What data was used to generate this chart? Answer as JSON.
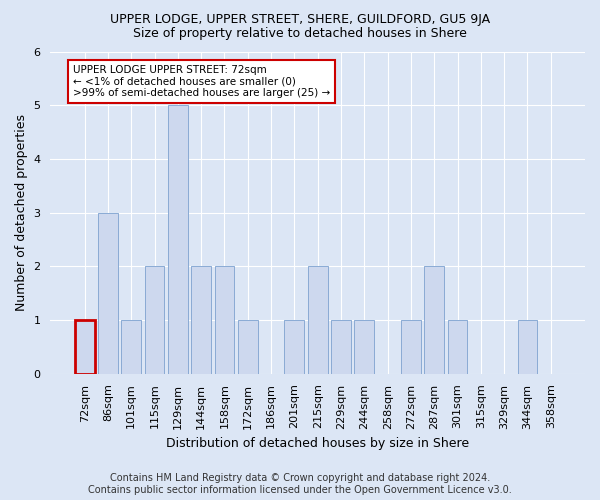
{
  "title": "UPPER LODGE, UPPER STREET, SHERE, GUILDFORD, GU5 9JA",
  "subtitle": "Size of property relative to detached houses in Shere",
  "xlabel": "Distribution of detached houses by size in Shere",
  "ylabel": "Number of detached properties",
  "footer_line1": "Contains HM Land Registry data © Crown copyright and database right 2024.",
  "footer_line2": "Contains public sector information licensed under the Open Government Licence v3.0.",
  "categories": [
    "72sqm",
    "86sqm",
    "101sqm",
    "115sqm",
    "129sqm",
    "144sqm",
    "158sqm",
    "172sqm",
    "186sqm",
    "201sqm",
    "215sqm",
    "229sqm",
    "244sqm",
    "258sqm",
    "272sqm",
    "287sqm",
    "301sqm",
    "315sqm",
    "329sqm",
    "344sqm",
    "358sqm"
  ],
  "values": [
    1,
    3,
    1,
    2,
    5,
    2,
    2,
    1,
    0,
    1,
    2,
    1,
    1,
    0,
    1,
    2,
    1,
    0,
    0,
    1,
    0
  ],
  "bar_color": "#cdd8ee",
  "bar_edge_color": "#8aaad4",
  "highlight_index": 0,
  "highlight_bar_edge_color": "#cc0000",
  "background_color": "#dce6f5",
  "plot_bg_color": "#dce6f5",
  "grid_color": "#ffffff",
  "ylim": [
    0,
    6
  ],
  "yticks": [
    0,
    1,
    2,
    3,
    4,
    5,
    6
  ],
  "annotation_title": "UPPER LODGE UPPER STREET: 72sqm",
  "annotation_line1": "← <1% of detached houses are smaller (0)",
  "annotation_line2": ">99% of semi-detached houses are larger (25) →",
  "annotation_box_facecolor": "#ffffff",
  "annotation_box_edgecolor": "#cc0000",
  "title_fontsize": 9,
  "subtitle_fontsize": 9,
  "ylabel_fontsize": 9,
  "xlabel_fontsize": 9,
  "tick_fontsize": 8,
  "annotation_fontsize": 7.5,
  "footer_fontsize": 7
}
